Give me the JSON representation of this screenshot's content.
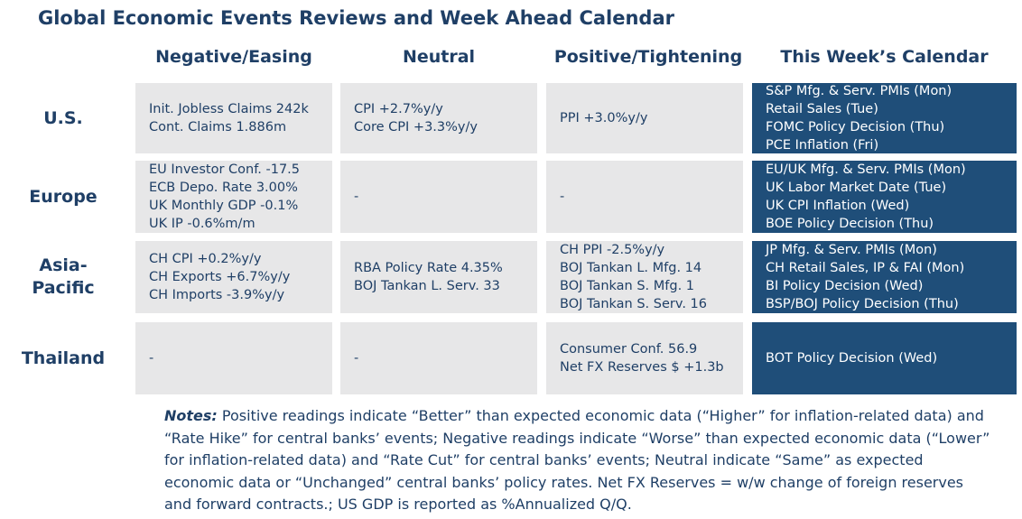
{
  "title": "Global Economic Events Reviews and Week Ahead Calendar",
  "columns": [
    "Negative/Easing",
    "Neutral",
    "Positive/Tightening",
    "This Week’s Calendar"
  ],
  "rows": [
    {
      "label": "U.S.",
      "negative": [
        "Init. Jobless Claims 242k",
        "Cont. Claims 1.886m"
      ],
      "neutral": [
        "CPI +2.7%y/y",
        "Core CPI +3.3%y/y"
      ],
      "positive": [
        "PPI +3.0%y/y"
      ],
      "calendar": [
        "S&P Mfg. & Serv. PMIs (Mon)",
        "Retail Sales (Tue)",
        "FOMC Policy Decision (Thu)",
        "PCE Inflation (Fri)"
      ]
    },
    {
      "label": "Europe",
      "negative": [
        "EU Investor Conf. -17.5",
        "ECB Depo. Rate 3.00%",
        "UK Monthly GDP -0.1%",
        "UK IP -0.6%m/m"
      ],
      "neutral": [
        "-"
      ],
      "positive": [
        "-"
      ],
      "calendar": [
        "EU/UK Mfg. & Serv. PMIs (Mon)",
        "UK Labor Market Date (Tue)",
        "UK CPI Inflation (Wed)",
        "BOE Policy Decision (Thu)"
      ]
    },
    {
      "label": "Asia-Pacific",
      "negative": [
        "CH CPI +0.2%y/y",
        "CH Exports +6.7%y/y",
        "CH Imports -3.9%y/y"
      ],
      "neutral": [
        "RBA Policy Rate 4.35%",
        "BOJ Tankan L. Serv. 33"
      ],
      "positive": [
        "CH PPI -2.5%y/y",
        "BOJ Tankan L. Mfg. 14",
        "BOJ Tankan S. Mfg. 1",
        "BOJ Tankan S. Serv. 16"
      ],
      "calendar": [
        "JP Mfg. & Serv. PMIs (Mon)",
        "CH Retail Sales, IP & FAI (Mon)",
        "BI Policy Decision (Wed)",
        "BSP/BOJ Policy Decision (Thu)"
      ]
    },
    {
      "label": "Thailand",
      "negative": [
        "-"
      ],
      "neutral": [
        "-"
      ],
      "positive": [
        "Consumer Conf. 56.9",
        "Net FX Reserves $ +1.3b"
      ],
      "calendar": [
        "BOT Policy Decision (Wed)"
      ]
    }
  ],
  "notes": {
    "lead": "Notes:",
    "text": " Positive readings indicate “Better” than expected economic data (“Higher” for inflation-related data) and “Rate Hike” for central banks’ events; Negative readings indicate “Worse” than expected economic data (“Lower” for inflation-related data) and “Rate Cut” for central banks’ events; Neutral indicate “Same” as expected economic data or “Unchanged” central banks’ policy rates. Net FX Reserves = w/w change of foreign reserves and forward contracts.; US GDP is reported as %Annualized Q/Q."
  },
  "colors": {
    "navy": "#1f4e79",
    "text": "#1f3f66",
    "cell": "#e7e7e8"
  }
}
